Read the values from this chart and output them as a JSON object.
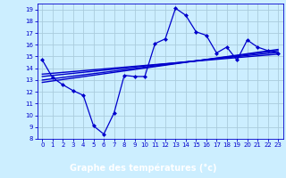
{
  "title": "Graphe des températures (°c)",
  "bg_color": "#cceeff",
  "plot_bg_color": "#cceeff",
  "grid_color": "#aaccdd",
  "line_color": "#0000cc",
  "title_bg": "#0000cc",
  "title_fg": "#ffffff",
  "xlim": [
    -0.5,
    23.5
  ],
  "ylim": [
    8,
    19.5
  ],
  "xticks": [
    0,
    1,
    2,
    3,
    4,
    5,
    6,
    7,
    8,
    9,
    10,
    11,
    12,
    13,
    14,
    15,
    16,
    17,
    18,
    19,
    20,
    21,
    22,
    23
  ],
  "yticks": [
    8,
    9,
    10,
    11,
    12,
    13,
    14,
    15,
    16,
    17,
    18,
    19
  ],
  "main_x": [
    0,
    1,
    2,
    3,
    4,
    5,
    6,
    7,
    8,
    9,
    10,
    11,
    12,
    13,
    14,
    15,
    16,
    17,
    18,
    19,
    20,
    21,
    22,
    23
  ],
  "main_y": [
    14.7,
    13.2,
    12.6,
    12.1,
    11.7,
    9.1,
    8.4,
    10.2,
    13.4,
    13.3,
    13.3,
    16.1,
    16.5,
    19.1,
    18.5,
    17.1,
    16.8,
    15.3,
    15.8,
    14.7,
    16.4,
    15.8,
    15.5,
    15.3
  ],
  "trend1_x": [
    0,
    23
  ],
  "trend1_y": [
    13.0,
    15.5
  ],
  "trend2_x": [
    0,
    23
  ],
  "trend2_y": [
    13.3,
    15.35
  ],
  "trend3_x": [
    0,
    23
  ],
  "trend3_y": [
    12.8,
    15.6
  ],
  "trend4_x": [
    0,
    23
  ],
  "trend4_y": [
    13.5,
    15.2
  ]
}
